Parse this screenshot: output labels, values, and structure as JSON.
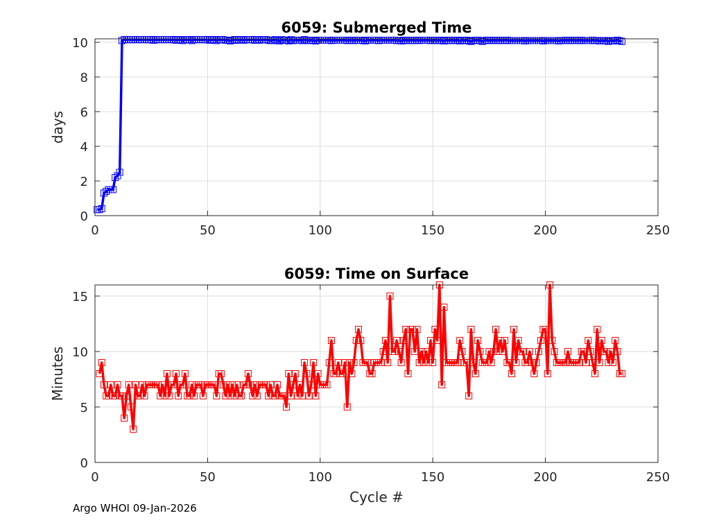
{
  "footer": "Argo WHOI 09-Jan-2026",
  "colors": {
    "top_series": "#0000ff",
    "bottom_series": "#ff0000",
    "grid": "#dcdcdc",
    "axes": "#262626"
  },
  "chart_data": [
    {
      "type": "line",
      "title": "6059: Submerged Time",
      "xlabel": "",
      "ylabel": "days",
      "xlim": [
        0,
        250
      ],
      "ylim": [
        0,
        10.2
      ],
      "xticks": [
        0,
        50,
        100,
        150,
        200,
        250
      ],
      "yticks": [
        0,
        2,
        4,
        6,
        8,
        10
      ],
      "grid": true,
      "marker": "square",
      "series": [
        {
          "name": "Submerged Time",
          "x_start": 1,
          "values": [
            0.35,
            0.35,
            0.4,
            1.3,
            1.4,
            1.5,
            1.5,
            1.5,
            2.2,
            2.3,
            2.5,
            10.1,
            10.15,
            10.15,
            10.15,
            10.15,
            10.15,
            10.15,
            10.15,
            10.15,
            10.15,
            10.15,
            10.15,
            10.15,
            10.15,
            10.12,
            10.15,
            10.15,
            10.15,
            10.15,
            10.15,
            10.15,
            10.15,
            10.15,
            10.15,
            10.12,
            10.15,
            10.15,
            10.1,
            10.15,
            10.15,
            10.15,
            10.1,
            10.15,
            10.15,
            10.15,
            10.15,
            10.15,
            10.15,
            10.15,
            10.12,
            10.15,
            10.15,
            10.1,
            10.15,
            10.15,
            10.15,
            10.12,
            10.12,
            10.08,
            10.12,
            10.15,
            10.15,
            10.12,
            10.15,
            10.12,
            10.15,
            10.15,
            10.15,
            10.15,
            10.12,
            10.15,
            10.12,
            10.15,
            10.15,
            10.15,
            10.12,
            10.1,
            10.12,
            10.15,
            10.1,
            10.08,
            10.15,
            10.12,
            10.12,
            10.08,
            10.15,
            10.1,
            10.12,
            10.12,
            10.12,
            10.1,
            10.15,
            10.12,
            10.1,
            10.12,
            10.1,
            10.08,
            10.12,
            10.12,
            10.12,
            10.12,
            10.12,
            10.12,
            10.1,
            10.12,
            10.12,
            10.12,
            10.12,
            10.12,
            10.12,
            10.1,
            10.12,
            10.12,
            10.1,
            10.12,
            10.12,
            10.12,
            10.1,
            10.08,
            10.12,
            10.12,
            10.12,
            10.12,
            10.12,
            10.1,
            10.12,
            10.12,
            10.12,
            10.12,
            10.12,
            10.12,
            10.12,
            10.1,
            10.1,
            10.08,
            10.12,
            10.12,
            10.1,
            10.12,
            10.12,
            10.1,
            10.12,
            10.1,
            10.12,
            10.12,
            10.12,
            10.12,
            10.1,
            10.12,
            10.12,
            10.1,
            10.12,
            10.1,
            10.08,
            10.12,
            10.1,
            10.12,
            10.12,
            10.1,
            10.12,
            10.08,
            10.12,
            10.1,
            10.12,
            10.08,
            10.05,
            10.1,
            10.12,
            10.12,
            10.1,
            10.05,
            10.1,
            10.12,
            10.1,
            10.1,
            10.12,
            10.1,
            10.12,
            10.12,
            10.1,
            10.12,
            10.12,
            10.1,
            10.1,
            10.1,
            10.1,
            10.1,
            10.1,
            10.1,
            10.08,
            10.1,
            10.1,
            10.1,
            10.1,
            10.1,
            10.1,
            10.1,
            10.08,
            10.1,
            10.1,
            10.1,
            10.1,
            10.1,
            10.1,
            10.08,
            10.1,
            10.1,
            10.12,
            10.1,
            10.12,
            10.12,
            10.1,
            10.1,
            10.12,
            10.12,
            10.1,
            10.1,
            10.1,
            10.1,
            10.12,
            10.1,
            10.1,
            10.08,
            10.1,
            10.08,
            10.1,
            10.05,
            10.1,
            10.08,
            10.1,
            10.12,
            10.08,
            10.05
          ]
        }
      ]
    },
    {
      "type": "line",
      "title": "6059: Time on Surface",
      "xlabel": "Cycle #",
      "ylabel": "Minutes",
      "xlim": [
        0,
        250
      ],
      "ylim": [
        0,
        16
      ],
      "xticks": [
        0,
        50,
        100,
        150,
        200,
        250
      ],
      "yticks": [
        0,
        5,
        10,
        15
      ],
      "grid": true,
      "marker": "square",
      "series": [
        {
          "name": "Time on Surface",
          "x_start": 2,
          "values": [
            8,
            9,
            7,
            6,
            6,
            7,
            6,
            6,
            7,
            6,
            6,
            4,
            6,
            7,
            5,
            3,
            7,
            6,
            6,
            7,
            6,
            7,
            7,
            7,
            7,
            7,
            7,
            6,
            7,
            6,
            8,
            6,
            7,
            7,
            8,
            6,
            7,
            7,
            8,
            6,
            6,
            7,
            6,
            7,
            7,
            7,
            6,
            7,
            7,
            7,
            7,
            7,
            6,
            8,
            8,
            7,
            6,
            7,
            6,
            7,
            6,
            7,
            6,
            6,
            7,
            7,
            8,
            7,
            6,
            7,
            6,
            7,
            7,
            7,
            7,
            6,
            7,
            6,
            6,
            7,
            6,
            6,
            6,
            5,
            8,
            6,
            7,
            8,
            6,
            7,
            6,
            9,
            8,
            6,
            7,
            9,
            6,
            8,
            7,
            7,
            7,
            7,
            9,
            11,
            8,
            8,
            9,
            8,
            8,
            9,
            5,
            9,
            8,
            9,
            11,
            12,
            11,
            9,
            9,
            9,
            8,
            8,
            9,
            9,
            9,
            9,
            10,
            11,
            9,
            15,
            10,
            10,
            11,
            10,
            9,
            11,
            12,
            8,
            12,
            12,
            10,
            12,
            9,
            10,
            9,
            10,
            9,
            11,
            9,
            12,
            11,
            16,
            7,
            14,
            9,
            9,
            9,
            9,
            9,
            9,
            11,
            10,
            9,
            9,
            6,
            12,
            9,
            8,
            11,
            10,
            9,
            9,
            9,
            10,
            9,
            10,
            12,
            10,
            11,
            10,
            11,
            9,
            9,
            8,
            12,
            9,
            11,
            10,
            10,
            9,
            9,
            10,
            9,
            8,
            9,
            10,
            11,
            12,
            12,
            8,
            16,
            11,
            10,
            9,
            9,
            9,
            9,
            9,
            10,
            9,
            9,
            9,
            9,
            9,
            10,
            10,
            9,
            11,
            10,
            9,
            8,
            12,
            9,
            11,
            10,
            10,
            9,
            10,
            9,
            11,
            10,
            8,
            8
          ]
        }
      ]
    }
  ]
}
